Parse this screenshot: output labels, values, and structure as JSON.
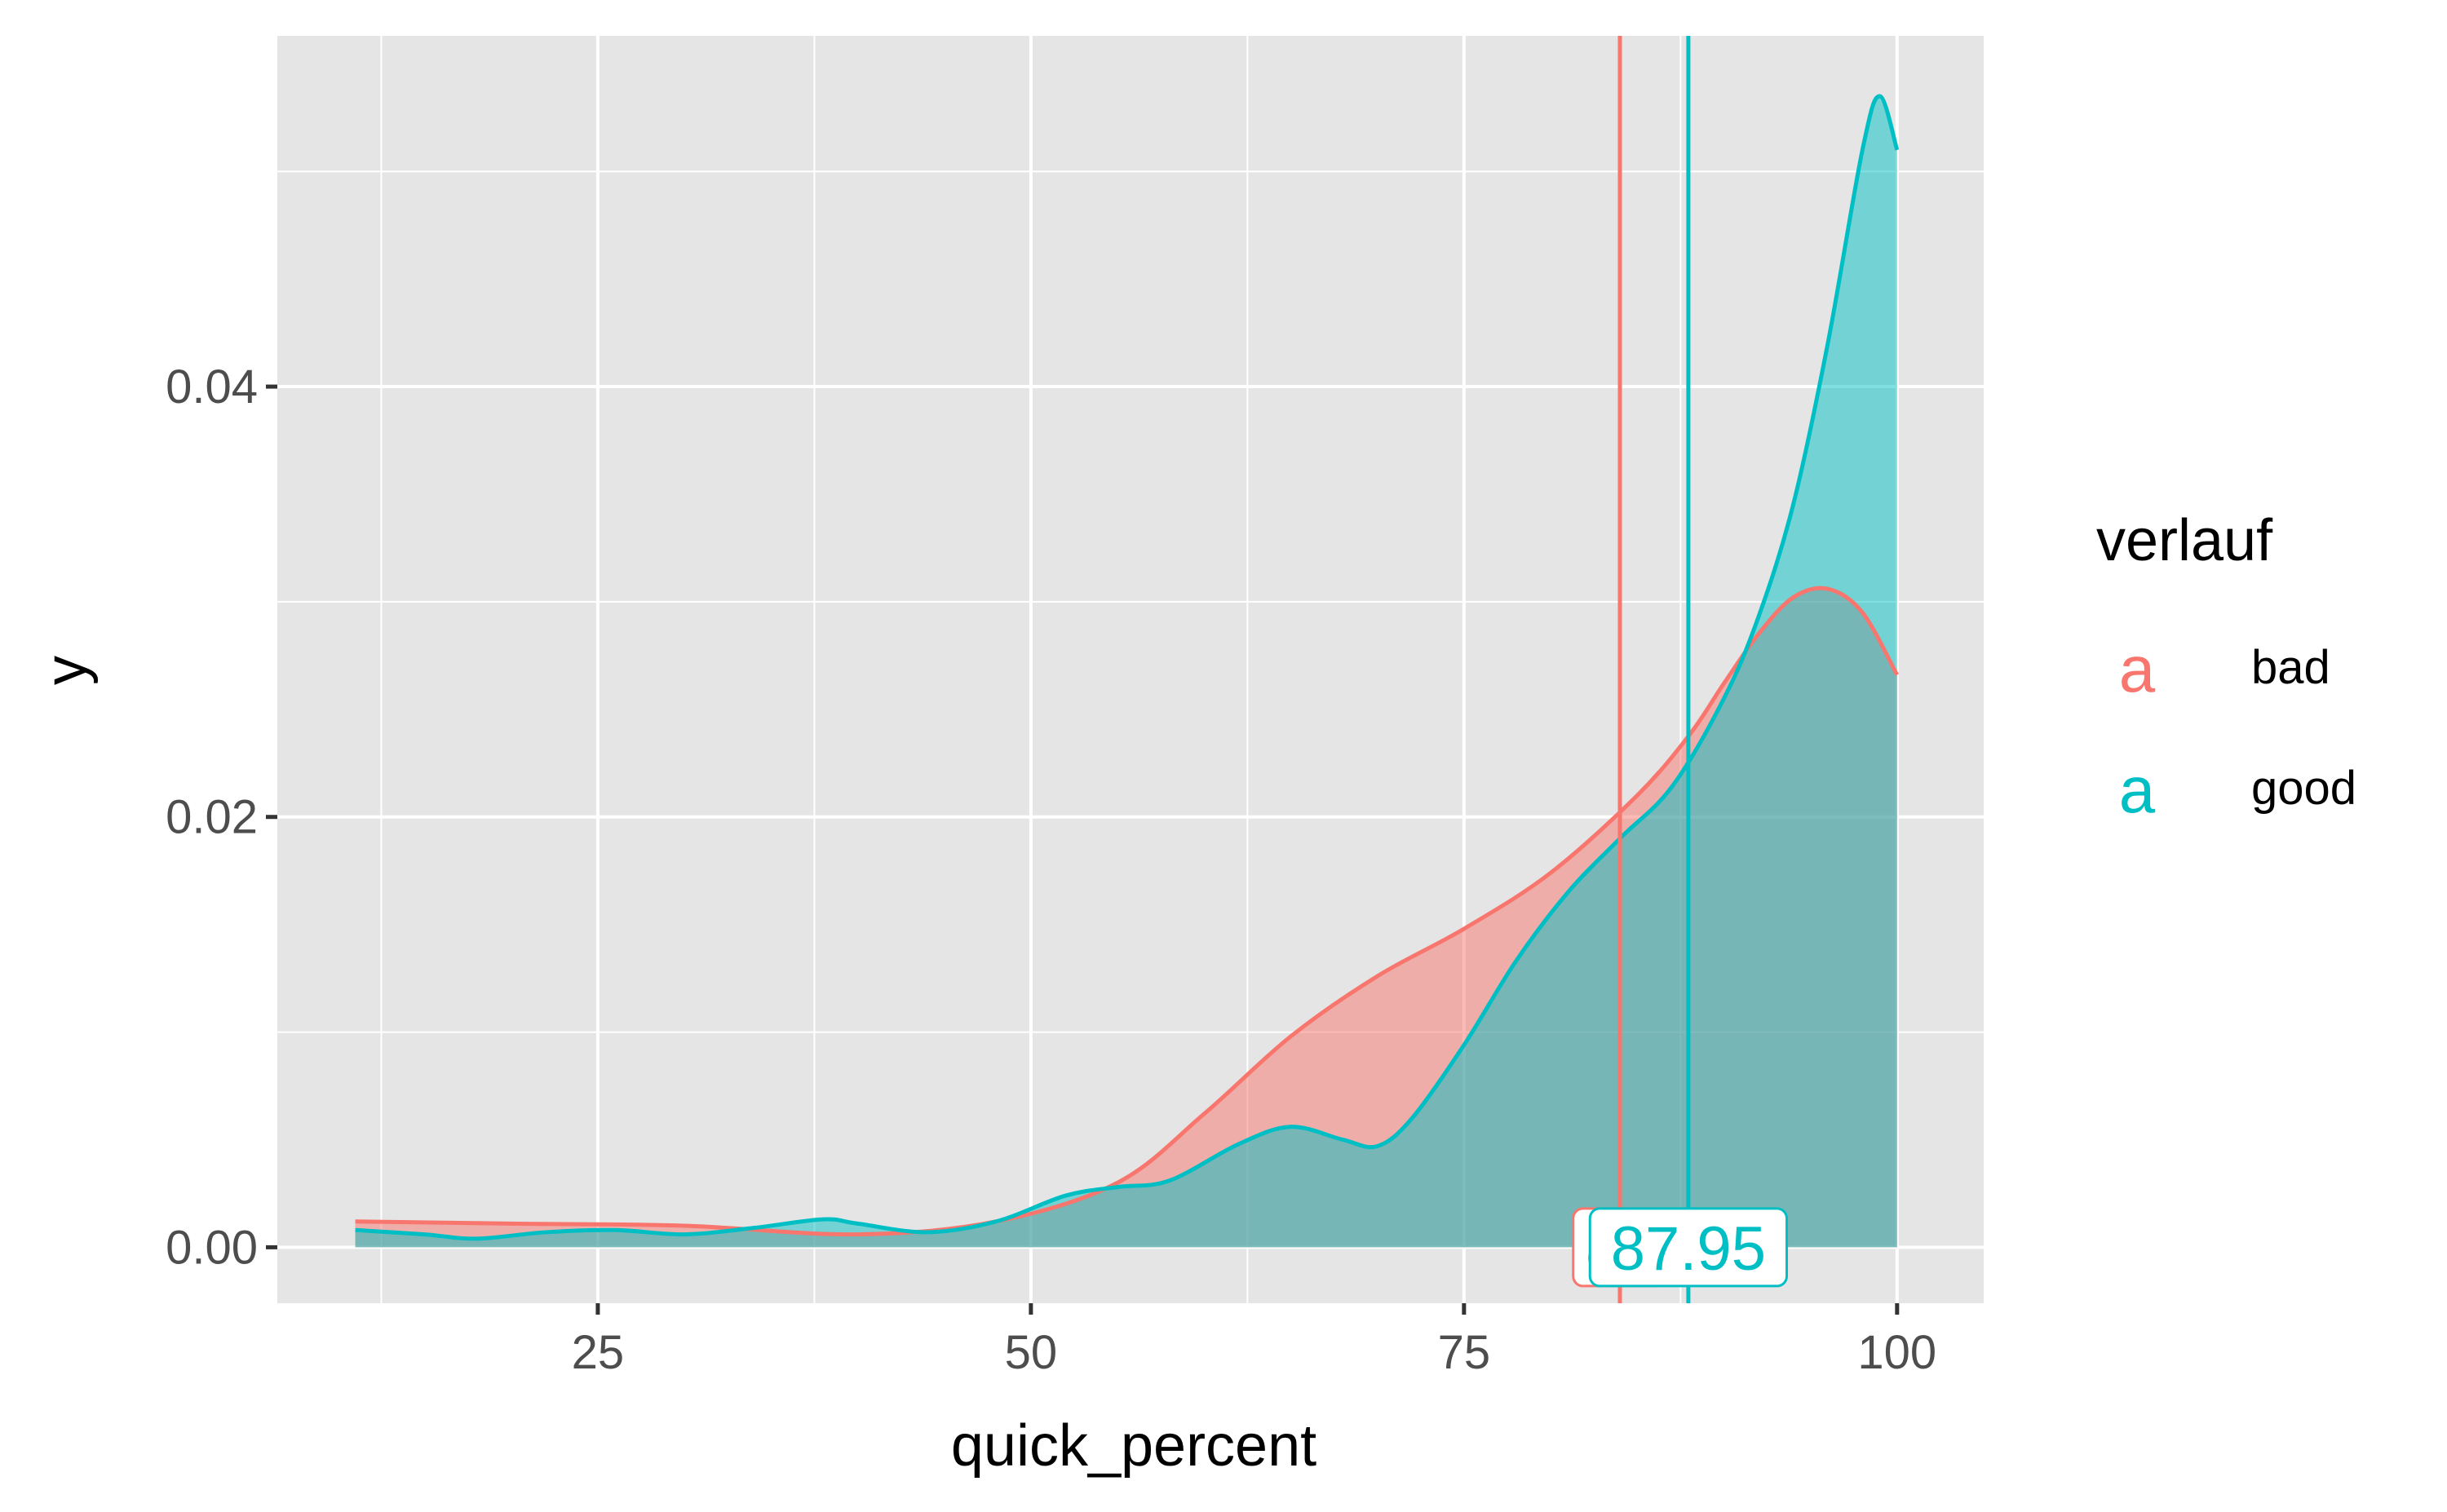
{
  "chart_data": {
    "type": "area",
    "title": "",
    "xlabel": "quick_percent",
    "ylabel": "y",
    "xlim": [
      6.5,
      105
    ],
    "ylim": [
      -0.0026,
      0.0563
    ],
    "x_ticks": [
      25,
      50,
      75,
      100
    ],
    "x_tick_labels": [
      "25",
      "50",
      "75",
      "100"
    ],
    "y_ticks": [
      0,
      0.02,
      0.04
    ],
    "y_tick_labels": [
      "0.00",
      "0.02",
      "0.04"
    ],
    "grid": true,
    "legend": {
      "title": "verlauf",
      "position": "right",
      "key_glyph": "a"
    },
    "series": [
      {
        "name": "bad",
        "color": "#F8766D",
        "x": [
          11,
          20,
          30,
          40,
          48,
          55,
          60,
          65,
          70,
          75,
          80,
          85,
          88,
          90,
          92,
          94,
          96,
          98,
          100
        ],
        "y": [
          0.0012,
          0.0011,
          0.001,
          0.0006,
          0.0012,
          0.003,
          0.0062,
          0.0098,
          0.0126,
          0.0148,
          0.0174,
          0.021,
          0.0238,
          0.0262,
          0.0285,
          0.0302,
          0.0306,
          0.0295,
          0.0266
        ]
      },
      {
        "name": "good",
        "color": "#00BFC4",
        "x": [
          11,
          15,
          18,
          22,
          26,
          30,
          34,
          38,
          40,
          44,
          48,
          52,
          55,
          58,
          62,
          65,
          68,
          70,
          72,
          75,
          78,
          81,
          84,
          87,
          90,
          92,
          94,
          96,
          98,
          99,
          100
        ],
        "y": [
          0.0008,
          0.0006,
          0.0004,
          0.0007,
          0.0008,
          0.0006,
          0.0009,
          0.0013,
          0.0011,
          0.0007,
          0.0012,
          0.0024,
          0.0028,
          0.0031,
          0.0048,
          0.0056,
          0.005,
          0.0047,
          0.006,
          0.0094,
          0.0133,
          0.0165,
          0.019,
          0.0214,
          0.0255,
          0.0293,
          0.0345,
          0.042,
          0.051,
          0.0535,
          0.051
        ]
      }
    ],
    "vlines": [
      {
        "series": "bad",
        "x": 84.0,
        "color": "#F8766D"
      },
      {
        "series": "good",
        "x": 87.95,
        "color": "#00BFC4"
      }
    ],
    "labels": [
      {
        "series": "bad",
        "x": 84.0,
        "y": 0.0,
        "text": "84",
        "color": "#F8766D"
      },
      {
        "series": "good",
        "x": 87.95,
        "y": 0.0,
        "text": "87.95",
        "color": "#00BFC4"
      }
    ],
    "panel_background": "#E5E5E5",
    "grid_color": "#FFFFFF"
  }
}
